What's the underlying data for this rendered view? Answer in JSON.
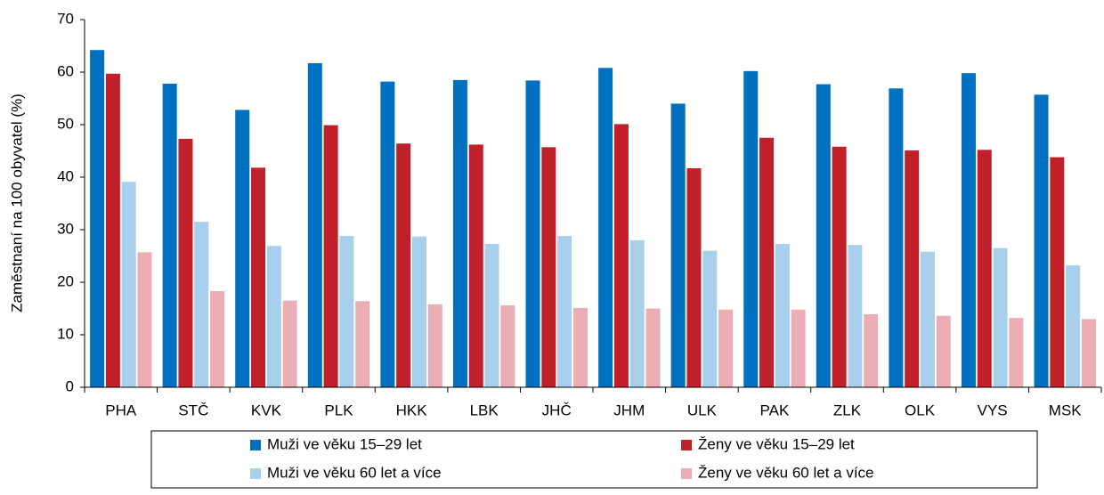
{
  "chart_data": {
    "type": "bar",
    "y_label": "Zaměstnaní na 100 obyvatel (%)",
    "categories": [
      "PHA",
      "STČ",
      "KVK",
      "PLK",
      "HKK",
      "LBK",
      "JHČ",
      "JHM",
      "ULK",
      "PAK",
      "ZLK",
      "OLK",
      "VYS",
      "MSK"
    ],
    "series": [
      {
        "name": "Muži ve věku 15–29 let",
        "color": "#0070c0",
        "values": [
          64.2,
          57.8,
          52.8,
          61.7,
          58.2,
          58.5,
          58.4,
          60.8,
          54.0,
          60.2,
          57.7,
          56.9,
          59.8,
          55.7
        ]
      },
      {
        "name": "Ženy ve věku 15–29 let",
        "color": "#c0202a",
        "values": [
          59.7,
          47.3,
          41.8,
          49.9,
          46.4,
          46.2,
          45.7,
          50.1,
          41.7,
          47.5,
          45.8,
          45.1,
          45.2,
          43.8
        ]
      },
      {
        "name": "Muži ve věku 60 let a více",
        "color": "#a8d0ec",
        "values": [
          39.1,
          31.5,
          26.9,
          28.8,
          28.7,
          27.3,
          28.8,
          28.0,
          26.0,
          27.3,
          27.1,
          25.8,
          26.5,
          23.2
        ]
      },
      {
        "name": "Ženy ve věku 60 let a více",
        "color": "#eaaeb4",
        "values": [
          25.7,
          18.3,
          16.5,
          16.4,
          15.8,
          15.6,
          15.1,
          15.0,
          14.8,
          14.8,
          13.9,
          13.6,
          13.2,
          13.0
        ]
      }
    ],
    "ylim": [
      0,
      70
    ],
    "yticks": [
      0,
      10,
      20,
      30,
      40,
      50,
      60,
      70
    ],
    "grid": false,
    "legend": "bottom"
  }
}
